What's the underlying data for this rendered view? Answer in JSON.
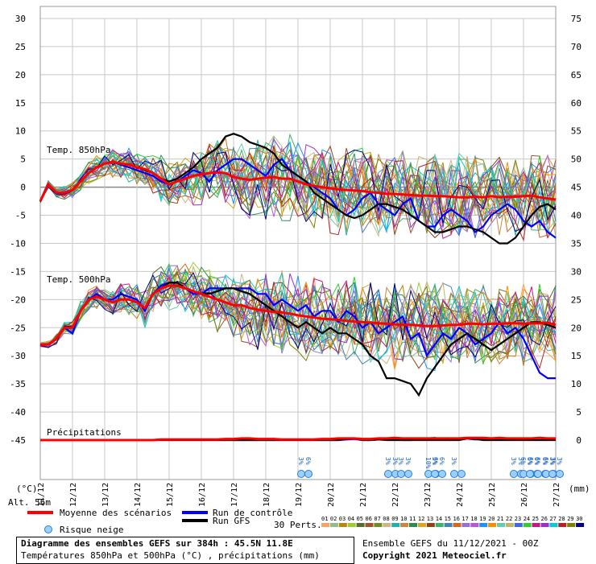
{
  "chart_data": {
    "type": "line",
    "title": "Diagramme des ensembles GEFS sur 384h : 45.5N 11.8E",
    "subtitle": "Températures 850hPa et 500hPa (°C) , précipitations (mm)",
    "y_left_unit": "(°C)",
    "y_right_unit": "(mm)",
    "altitude": "Alt. 56m",
    "left_ticks": [
      30,
      25,
      20,
      15,
      10,
      5,
      0,
      -5,
      -10,
      -15,
      -20,
      -25,
      -30,
      -35,
      -40,
      -45
    ],
    "right_ticks": [
      75,
      70,
      65,
      60,
      55,
      50,
      45,
      40,
      35,
      30,
      25,
      20,
      15,
      10,
      5,
      0
    ],
    "ylim": [
      -45,
      30
    ],
    "x_dates": [
      "11/12",
      "12/12",
      "13/12",
      "14/12",
      "15/12",
      "16/12",
      "17/12",
      "18/12",
      "19/12",
      "20/12",
      "21/12",
      "22/12",
      "23/12",
      "24/12",
      "25/12",
      "26/12",
      "27/12"
    ],
    "series_labels": {
      "t850": "Temp. 850hPa",
      "t500": "Temp. 500hPa",
      "precip": "Précipitations"
    },
    "x_steps_6h": [
      0,
      1,
      2,
      3,
      4,
      5,
      6,
      7,
      8,
      9,
      10,
      11,
      12,
      13,
      14,
      15,
      16,
      17,
      18,
      19,
      20,
      21,
      22,
      23,
      24,
      25,
      26,
      27,
      28,
      29,
      30,
      31,
      32,
      33,
      34,
      35,
      36,
      37,
      38,
      39,
      40,
      41,
      42,
      43,
      44,
      45,
      46,
      47,
      48,
      49,
      50,
      51,
      52,
      53,
      54,
      55,
      56,
      57,
      58,
      59,
      60,
      61,
      62,
      63,
      64
    ],
    "series": [
      {
        "name": "Moyenne des scénarios",
        "color": "#ff0000",
        "t850": [
          -2.5,
          0.5,
          -1,
          -1,
          -0.5,
          1,
          2.5,
          3.5,
          4.2,
          4.5,
          4.2,
          4,
          3.5,
          3.2,
          2.5,
          1.5,
          0.5,
          1,
          1.5,
          2,
          2.3,
          2.5,
          2.6,
          2.5,
          1.8,
          1.5,
          1.3,
          1.5,
          1.7,
          1.8,
          1.5,
          1.5,
          1,
          0.5,
          0.2,
          0,
          -0.2,
          -0.4,
          -0.5,
          -0.6,
          -0.7,
          -0.9,
          -1,
          -1.2,
          -1.2,
          -1.3,
          -1.4,
          -1.5,
          -1.5,
          -1.6,
          -1.6,
          -1.7,
          -1.8,
          -1.8,
          -1.7,
          -1.8,
          -1.6,
          -1.8,
          -1.7,
          -1.7,
          -1.6,
          -1.5,
          -1.8,
          -2,
          -2.2
        ],
        "t500": [
          -28,
          -28,
          -27,
          -25,
          -25,
          -22,
          -20,
          -19.5,
          -20,
          -20.5,
          -20,
          -20,
          -20.5,
          -21.5,
          -19,
          -18,
          -17.5,
          -17.5,
          -18,
          -18.5,
          -19,
          -19.5,
          -20,
          -20.5,
          -21,
          -21,
          -21.5,
          -21.8,
          -22,
          -22.2,
          -22.3,
          -22.5,
          -22.8,
          -23,
          -23.2,
          -23.4,
          -23.5,
          -23.6,
          -23.8,
          -23.9,
          -24,
          -24.1,
          -24.2,
          -24.3,
          -24.4,
          -24.5,
          -24.5,
          -24.6,
          -24.7,
          -24.7,
          -24.6,
          -24.5,
          -24.5,
          -24.3,
          -24.3,
          -24.4,
          -24.3,
          -24.3,
          -24.2,
          -24.2,
          -24.3,
          -24.2,
          -24.2,
          -24.1,
          -24.5
        ],
        "precip": [
          0,
          0,
          0,
          0,
          0,
          0,
          0,
          0,
          0,
          0,
          0,
          0,
          0,
          0,
          0,
          0.1,
          0.1,
          0.1,
          0.1,
          0.1,
          0.1,
          0.1,
          0.1,
          0.2,
          0.2,
          0.3,
          0.3,
          0.2,
          0.2,
          0.2,
          0.1,
          0.1,
          0.1,
          0.1,
          0.1,
          0.2,
          0.2,
          0.3,
          0.3,
          0.3,
          0.2,
          0.2,
          0.3,
          0.3,
          0.4,
          0.3,
          0.3,
          0.3,
          0.3,
          0.3,
          0.3,
          0.3,
          0.3,
          0.4,
          0.4,
          0.4,
          0.3,
          0.4,
          0.3,
          0.3,
          0.3,
          0.3,
          0.4,
          0.3,
          0.3
        ]
      },
      {
        "name": "Run de contrôle",
        "color": "#0000ff",
        "t850": [
          -2.5,
          0.5,
          -1,
          -1,
          -0.5,
          1,
          2.5,
          3.5,
          4.2,
          4.5,
          4,
          3.5,
          3,
          2.5,
          2,
          1,
          0.5,
          1,
          2,
          3,
          2.5,
          1,
          3,
          4,
          5,
          5,
          4,
          3,
          2,
          4,
          5,
          3,
          2,
          1,
          0,
          -1,
          -2,
          -4,
          -5,
          -4,
          -2,
          -1,
          -3,
          -4,
          -5,
          -3,
          -2,
          -6,
          -7,
          -7,
          -5,
          -4,
          -5,
          -6,
          -8,
          -7,
          -5,
          -4,
          -3,
          -4,
          -6,
          -7,
          -6,
          -8,
          -9
        ],
        "t500": [
          -28,
          -28,
          -27,
          -25,
          -26,
          -22,
          -20,
          -19,
          -20,
          -20,
          -19,
          -19.5,
          -20,
          -22,
          -19,
          -17.5,
          -17,
          -17,
          -18,
          -19,
          -19,
          -18,
          -18,
          -18,
          -18,
          -18,
          -18,
          -19,
          -19,
          -21,
          -20,
          -21,
          -22,
          -21,
          -23,
          -22,
          -22,
          -24,
          -22,
          -23,
          -25,
          -24,
          -26,
          -25,
          -24,
          -23,
          -27,
          -26,
          -30,
          -28,
          -26,
          -27,
          -25,
          -26,
          -28,
          -27,
          -26,
          -24,
          -26,
          -25,
          -27,
          -30,
          -33,
          -34,
          -34
        ],
        "precip": [
          0,
          0,
          0,
          0,
          0,
          0,
          0,
          0,
          0,
          0,
          0,
          0,
          0,
          0,
          0,
          0,
          0,
          0,
          0,
          0,
          0,
          0,
          0,
          0,
          0,
          0,
          0,
          0,
          0,
          0,
          0,
          0,
          0,
          0,
          0,
          0,
          0,
          0,
          0.1,
          0.2,
          0,
          0,
          0.1,
          0.2,
          0.3,
          0,
          0,
          0.2,
          0.3,
          0.4,
          0.1,
          0,
          0.2,
          0.3,
          0.1,
          0.2,
          0.1,
          0.3,
          0.2,
          0.2,
          0.1,
          0.3,
          0.4,
          0.2,
          0.1
        ]
      },
      {
        "name": "Run GFS",
        "color": "#000000",
        "t850": [
          -2.5,
          0.5,
          -1,
          -1,
          -0.5,
          1,
          2.5,
          3.5,
          4.2,
          4.5,
          4.2,
          4,
          3.5,
          3,
          2.5,
          1.5,
          1,
          1.5,
          2.5,
          3.5,
          5,
          6,
          7,
          9,
          9.5,
          9,
          8,
          7.5,
          7,
          6,
          4,
          3,
          2,
          1,
          -1,
          -2,
          -3,
          -4,
          -5,
          -5.5,
          -5,
          -4,
          -3,
          -3,
          -3.5,
          -4,
          -5,
          -6,
          -7,
          -8,
          -8,
          -7.5,
          -7,
          -7,
          -7.5,
          -8,
          -9,
          -10,
          -10,
          -9,
          -7,
          -5,
          -3.5,
          -3,
          -4
        ],
        "t500": [
          -28,
          -28,
          -27,
          -25,
          -25,
          -22,
          -20,
          -19.5,
          -20,
          -20.5,
          -20,
          -20,
          -20.5,
          -21.5,
          -19,
          -18,
          -17,
          -17,
          -18,
          -18.5,
          -19,
          -19,
          -18.5,
          -18,
          -18,
          -18.5,
          -19,
          -20,
          -21,
          -22,
          -23,
          -24,
          -25,
          -24,
          -25,
          -26,
          -25,
          -26,
          -26,
          -27,
          -28,
          -30,
          -31,
          -34,
          -34,
          -34.5,
          -35,
          -37,
          -34,
          -32,
          -30,
          -28,
          -27,
          -26,
          -27,
          -28,
          -29,
          -28,
          -27,
          -26,
          -25,
          -24,
          -24,
          -24.5,
          -25
        ],
        "precip": [
          0,
          0,
          0,
          0,
          0,
          0,
          0,
          0,
          0,
          0,
          0,
          0,
          0,
          0,
          0,
          0,
          0,
          0,
          0,
          0,
          0,
          0,
          0,
          0,
          0,
          0,
          0,
          0,
          0,
          0,
          0,
          0,
          0,
          0,
          0,
          0,
          0,
          0,
          0.2,
          0.3,
          0,
          0,
          0.1,
          0,
          0,
          0,
          0,
          0,
          0,
          0,
          0,
          0,
          0,
          0.3,
          0.2,
          0,
          0,
          0,
          0,
          0,
          0,
          0,
          0,
          0,
          0
        ]
      }
    ],
    "precip_markers": [
      {
        "x_date_index": 8.1,
        "labels": [
          "3%",
          "6%"
        ]
      },
      {
        "x_date_index": 10.8,
        "labels": [
          "3%",
          "3%"
        ]
      },
      {
        "x_date_index": 11.2,
        "labels": [
          "3%",
          "3%"
        ]
      },
      {
        "x_date_index": 12.05,
        "labels": [
          "10%",
          "6%"
        ]
      },
      {
        "x_date_index": 12.25,
        "labels": [
          "3%",
          "6%"
        ]
      },
      {
        "x_date_index": 12.85,
        "labels": [
          "3%"
        ]
      },
      {
        "x_date_index": 14.7,
        "labels": [
          "3%",
          "3%"
        ]
      },
      {
        "x_date_index": 15.0,
        "labels": [
          "6%",
          "6%"
        ]
      },
      {
        "x_date_index": 15.2,
        "labels": [
          "6%",
          "6%"
        ]
      },
      {
        "x_date_index": 15.45,
        "labels": [
          "6%",
          "6%"
        ]
      },
      {
        "x_date_index": 15.7,
        "labels": [
          "6%",
          "3%"
        ]
      },
      {
        "x_date_index": 15.9,
        "labels": [
          "3%",
          "3%"
        ]
      }
    ]
  },
  "legend": {
    "mean": "Moyenne des scénarios",
    "control": "Run de contrôle",
    "gfs": "Run GFS",
    "snow": "Risque neige",
    "perts_label": "30 Perts.",
    "pert_ids": [
      "01",
      "02",
      "03",
      "04",
      "05",
      "06",
      "07",
      "08",
      "09",
      "10",
      "11",
      "12",
      "13",
      "14",
      "15",
      "16",
      "17",
      "18",
      "19",
      "20",
      "21",
      "22",
      "23",
      "24",
      "25",
      "26",
      "27",
      "28",
      "29",
      "30"
    ],
    "pert_colors": [
      "#f4a460",
      "#8fbc8f",
      "#b8860b",
      "#9acd32",
      "#556b2f",
      "#a0522d",
      "#6b8e23",
      "#d2b48c",
      "#20b2aa",
      "#cd853f",
      "#2e8b57",
      "#daa520",
      "#8b4513",
      "#3cb371",
      "#4682b4",
      "#d2691e",
      "#9370db",
      "#ba55d3",
      "#1e90ff",
      "#ff8c00",
      "#66cdaa",
      "#bdb76b",
      "#4169e1",
      "#32cd32",
      "#c71585",
      "#9932cc",
      "#00ced1",
      "#b22222",
      "#808000",
      "#000080"
    ]
  },
  "footer": {
    "title": "Diagramme des ensembles GEFS sur 384h : 45.5N 11.8E",
    "subtitle": "Températures 850hPa et 500hPa (°C) , précipitations (mm)",
    "run": "Ensemble GEFS du 11/12/2021 - 00Z",
    "copyright": "Copyright 2021 Meteociel.fr"
  }
}
